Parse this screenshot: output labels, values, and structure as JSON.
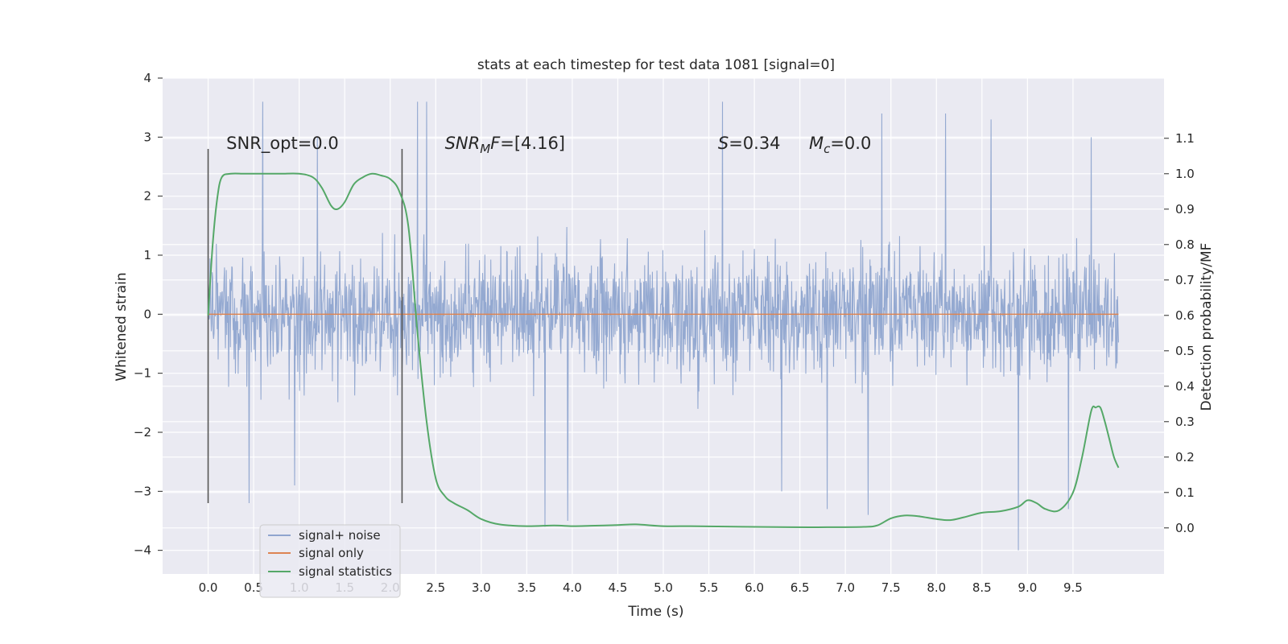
{
  "chart_data": {
    "type": "line",
    "title": "stats at each timestep for test data 1081 [signal=0]",
    "xlabel": "Time (s)",
    "ylabel": "Whitened strain",
    "y2label": "Detection probability/MF",
    "xlim": [
      -0.5,
      10.5
    ],
    "ylim": [
      -4.4,
      4.0
    ],
    "y2lim": [
      -0.13,
      1.27
    ],
    "xticks": [
      "0.0",
      "0.5",
      "1.0",
      "1.5",
      "2.0",
      "2.5",
      "3.0",
      "3.5",
      "4.0",
      "4.5",
      "5.0",
      "5.5",
      "6.0",
      "6.5",
      "7.0",
      "7.5",
      "8.0",
      "8.5",
      "9.0",
      "9.5"
    ],
    "yticks": [
      "4",
      "3",
      "2",
      "1",
      "0",
      "−1",
      "−2",
      "−3",
      "−4"
    ],
    "y2ticks": [
      "1.1",
      "1.0",
      "0.9",
      "0.8",
      "0.7",
      "0.6",
      "0.5",
      "0.4",
      "0.3",
      "0.2",
      "0.1",
      "0.0"
    ],
    "grid": true,
    "legend_position": "lower-left",
    "colors": {
      "noise": "#8fa5cf",
      "signal": "#dd8452",
      "statistics": "#55a868",
      "vlines": "#555555",
      "background": "#eaeaf2",
      "grid": "#ffffff"
    },
    "annotations": [
      {
        "text": "SNR_opt=0.0",
        "x": 0.2
      },
      {
        "text": "SNR_M F=[4.16]",
        "x": 2.6
      },
      {
        "text": "S=0.34",
        "x": 5.6
      },
      {
        "text": "M_c=0.0",
        "x": 6.6
      }
    ],
    "vertical_lines": [
      {
        "x": 0.0,
        "ymin": -3.2,
        "ymax": 2.8
      },
      {
        "x": 2.13,
        "ymin": -3.2,
        "ymax": 2.8
      }
    ],
    "series": [
      {
        "name": "signal+ noise",
        "kind": "noise",
        "x_range": [
          0.0,
          10.0
        ],
        "amplitude_typical": 1.6,
        "spikes": [
          [
            0.6,
            3.6
          ],
          [
            1.2,
            3.0
          ],
          [
            2.3,
            3.6
          ],
          [
            2.4,
            3.6
          ],
          [
            5.65,
            3.6
          ],
          [
            7.4,
            3.4
          ],
          [
            8.1,
            3.4
          ],
          [
            8.6,
            3.3
          ],
          [
            9.7,
            3.0
          ],
          [
            0.45,
            -3.2
          ],
          [
            0.95,
            -2.9
          ],
          [
            3.7,
            -3.6
          ],
          [
            3.95,
            -3.5
          ],
          [
            6.3,
            -3.0
          ],
          [
            7.25,
            -3.4
          ],
          [
            8.9,
            -4.0
          ],
          [
            9.45,
            -3.3
          ],
          [
            6.8,
            -3.3
          ]
        ]
      },
      {
        "name": "signal only",
        "kind": "signal",
        "x": [
          0.0,
          10.0
        ],
        "values": [
          0.0,
          0.0
        ]
      },
      {
        "name": "signal statistics",
        "kind": "statistics",
        "axis": "right",
        "x": [
          0.0,
          0.05,
          0.1,
          0.15,
          0.25,
          0.4,
          0.6,
          0.8,
          1.0,
          1.15,
          1.25,
          1.35,
          1.42,
          1.5,
          1.6,
          1.7,
          1.8,
          1.9,
          2.0,
          2.1,
          2.2,
          2.3,
          2.4,
          2.5,
          2.6,
          2.7,
          2.85,
          3.0,
          3.2,
          3.5,
          3.8,
          4.0,
          4.2,
          4.5,
          4.7,
          5.0,
          5.3,
          5.6,
          6.0,
          6.4,
          6.8,
          7.2,
          7.35,
          7.5,
          7.65,
          7.8,
          8.0,
          8.15,
          8.3,
          8.5,
          8.7,
          8.9,
          9.0,
          9.1,
          9.2,
          9.35,
          9.5,
          9.6,
          9.7,
          9.75,
          9.8,
          9.85,
          9.9,
          9.95,
          10.0
        ],
        "values": [
          0.6,
          0.8,
          0.93,
          0.99,
          1.0,
          1.0,
          1.0,
          1.0,
          1.0,
          0.99,
          0.96,
          0.91,
          0.9,
          0.92,
          0.97,
          0.99,
          1.0,
          0.995,
          0.985,
          0.95,
          0.85,
          0.55,
          0.3,
          0.14,
          0.09,
          0.07,
          0.05,
          0.025,
          0.01,
          0.005,
          0.007,
          0.005,
          0.006,
          0.008,
          0.01,
          0.005,
          0.005,
          0.004,
          0.003,
          0.002,
          0.002,
          0.003,
          0.007,
          0.027,
          0.035,
          0.033,
          0.025,
          0.022,
          0.03,
          0.043,
          0.047,
          0.06,
          0.078,
          0.07,
          0.053,
          0.05,
          0.1,
          0.2,
          0.33,
          0.34,
          0.34,
          0.3,
          0.25,
          0.2,
          0.17
        ]
      }
    ]
  }
}
